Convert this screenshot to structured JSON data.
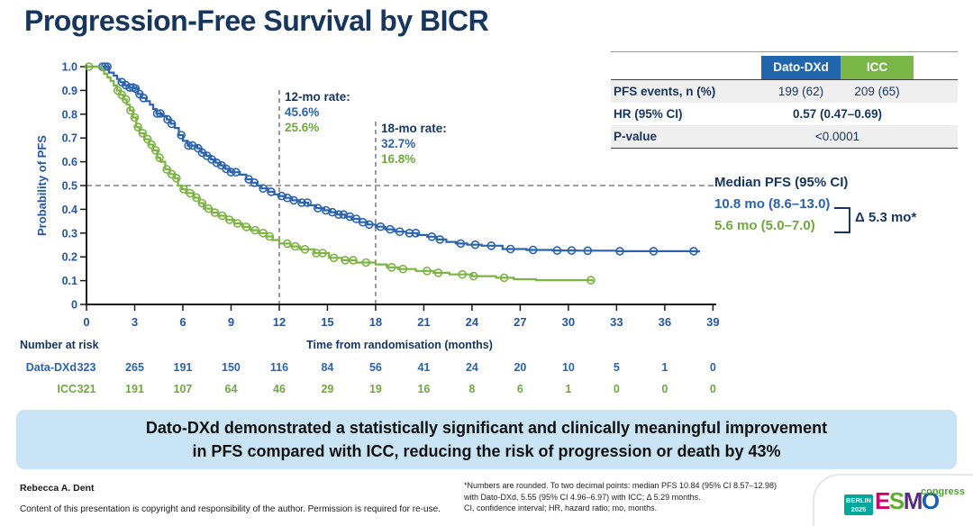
{
  "title": "Progression-Free Survival by BICR",
  "colors": {
    "navy": "#16365D",
    "blue": "#2A63AE",
    "green": "#7CB342",
    "green_text": "#6FA83C",
    "tick_blue": "#2456A3",
    "blue_hdr": "#2166AC",
    "green_hdr": "#7AB648",
    "banner_bg": "#C9E4F5",
    "teal": "#00A79B",
    "congress_green": "#4CA32F",
    "esmo_e": "#D5006D",
    "esmo_s": "#5FAF2D",
    "esmo_m": "#582C83",
    "esmo_o": "#1B5FAF"
  },
  "stats_table": {
    "header_dato": "Dato-DXd",
    "header_icc": "ICC",
    "row1_label": "PFS events, n (%)",
    "row1_dato": "199 (62)",
    "row1_icc": "209 (65)",
    "row2_label": "HR (95% CI)",
    "row2_value": "0.57 (0.47–0.69)",
    "row3_label": "P-value",
    "row3_value": "<0.0001"
  },
  "annotations": {
    "rate12_title": "12-mo rate:",
    "rate12_dato": "45.6%",
    "rate12_icc": "25.6%",
    "rate18_title": "18-mo rate:",
    "rate18_dato": "32.7%",
    "rate18_icc": "16.8%",
    "median_title": "Median PFS (95% CI)",
    "median_dato": "10.8 mo (8.6–13.0)",
    "median_icc": "5.6 mo (5.0–7.0)",
    "median_delta": "Δ 5.3 mo*"
  },
  "chart_data": {
    "type": "line",
    "subtype": "kaplan-meier-step",
    "title": "Progression-Free Survival by BICR",
    "xlabel": "Time from randomisation (months)",
    "ylabel": "Probability of PFS",
    "xlim": [
      0,
      39
    ],
    "ylim": [
      0,
      1.0
    ],
    "x_ticks": [
      0,
      3,
      6,
      9,
      12,
      15,
      18,
      21,
      24,
      27,
      30,
      33,
      36,
      39
    ],
    "y_tick_labels": [
      "1.0",
      "0.9",
      "0.8",
      "0.7",
      "0.6",
      "0.5",
      "0.4",
      "0.3",
      "0.2",
      "0.1",
      "0"
    ],
    "y_tick_values": [
      1.0,
      0.9,
      0.8,
      0.7,
      0.6,
      0.5,
      0.4,
      0.3,
      0.2,
      0.1,
      0
    ],
    "grid": false,
    "reference_lines": {
      "horizontal_p": 0.5,
      "vertical_months": [
        12,
        18
      ]
    },
    "series": [
      {
        "name": "Dato-DXd",
        "color": "#2A63AE",
        "end_month": 38.2,
        "steps": [
          [
            0,
            1.0
          ],
          [
            1.25,
            1.0
          ],
          [
            1.4,
            0.975
          ],
          [
            1.7,
            0.962
          ],
          [
            1.9,
            0.948
          ],
          [
            2.1,
            0.935
          ],
          [
            2.35,
            0.922
          ],
          [
            2.6,
            0.912
          ],
          [
            3.0,
            0.908
          ],
          [
            3.2,
            0.885
          ],
          [
            3.45,
            0.868
          ],
          [
            3.7,
            0.855
          ],
          [
            3.95,
            0.84
          ],
          [
            4.15,
            0.822
          ],
          [
            4.35,
            0.803
          ],
          [
            4.7,
            0.792
          ],
          [
            5.0,
            0.778
          ],
          [
            5.25,
            0.76
          ],
          [
            5.5,
            0.742
          ],
          [
            5.75,
            0.712
          ],
          [
            6.0,
            0.688
          ],
          [
            6.3,
            0.668
          ],
          [
            6.9,
            0.657
          ],
          [
            7.15,
            0.638
          ],
          [
            7.45,
            0.625
          ],
          [
            7.75,
            0.61
          ],
          [
            8.05,
            0.596
          ],
          [
            8.35,
            0.585
          ],
          [
            8.65,
            0.57
          ],
          [
            8.95,
            0.556
          ],
          [
            9.55,
            0.546
          ],
          [
            9.95,
            0.526
          ],
          [
            10.3,
            0.512
          ],
          [
            10.6,
            0.5
          ],
          [
            10.9,
            0.488
          ],
          [
            11.3,
            0.474
          ],
          [
            11.7,
            0.463
          ],
          [
            12.0,
            0.456
          ],
          [
            12.4,
            0.448
          ],
          [
            12.8,
            0.438
          ],
          [
            13.3,
            0.428
          ],
          [
            13.8,
            0.417
          ],
          [
            14.3,
            0.405
          ],
          [
            14.8,
            0.396
          ],
          [
            15.2,
            0.388
          ],
          [
            15.6,
            0.378
          ],
          [
            16.1,
            0.369
          ],
          [
            16.5,
            0.36
          ],
          [
            17.0,
            0.346
          ],
          [
            17.5,
            0.336
          ],
          [
            18.0,
            0.327
          ],
          [
            18.6,
            0.316
          ],
          [
            19.2,
            0.306
          ],
          [
            19.9,
            0.3
          ],
          [
            20.6,
            0.292
          ],
          [
            21.2,
            0.285
          ],
          [
            21.8,
            0.273
          ],
          [
            22.4,
            0.263
          ],
          [
            23.0,
            0.256
          ],
          [
            23.7,
            0.251
          ],
          [
            24.6,
            0.247
          ],
          [
            25.9,
            0.233
          ],
          [
            27.4,
            0.229
          ],
          [
            29.0,
            0.227
          ],
          [
            30.6,
            0.226
          ],
          [
            33.0,
            0.224
          ],
          [
            38.0,
            0.223
          ]
        ],
        "censor_months": [
          1.0,
          1.15,
          1.3,
          2.2,
          2.45,
          2.7,
          2.9,
          3.05,
          3.3,
          3.55,
          4.4,
          4.6,
          5.05,
          5.3,
          5.9,
          6.35,
          6.6,
          6.95,
          7.2,
          7.5,
          7.8,
          8.1,
          8.4,
          8.7,
          9.0,
          9.3,
          10.1,
          10.45,
          11.0,
          11.5,
          12.15,
          12.5,
          12.9,
          13.4,
          13.75,
          14.4,
          14.9,
          15.3,
          15.7,
          16.0,
          16.4,
          16.8,
          17.2,
          17.6,
          18.3,
          18.9,
          19.5,
          20.1,
          20.5,
          21.5,
          22.0,
          23.3,
          24.2,
          25.2,
          26.4,
          27.8,
          29.3,
          30.2,
          31.2,
          33.2,
          35.3,
          37.8
        ],
        "rate_12mo": 0.456,
        "rate_18mo": 0.327,
        "median_months": 10.8
      },
      {
        "name": "ICC",
        "color": "#7CB342",
        "end_month": 31.55,
        "steps": [
          [
            0,
            1.0
          ],
          [
            0.8,
            1.0
          ],
          [
            0.95,
            0.985
          ],
          [
            1.1,
            0.97
          ],
          [
            1.3,
            0.955
          ],
          [
            1.5,
            0.94
          ],
          [
            1.7,
            0.921
          ],
          [
            1.9,
            0.9
          ],
          [
            2.1,
            0.881
          ],
          [
            2.3,
            0.862
          ],
          [
            2.5,
            0.84
          ],
          [
            2.7,
            0.816
          ],
          [
            2.9,
            0.786
          ],
          [
            3.1,
            0.746
          ],
          [
            3.3,
            0.72
          ],
          [
            3.6,
            0.695
          ],
          [
            3.9,
            0.672
          ],
          [
            4.15,
            0.648
          ],
          [
            4.4,
            0.617
          ],
          [
            4.6,
            0.6
          ],
          [
            4.9,
            0.568
          ],
          [
            5.2,
            0.548
          ],
          [
            5.5,
            0.531
          ],
          [
            5.7,
            0.5
          ],
          [
            5.95,
            0.485
          ],
          [
            6.2,
            0.468
          ],
          [
            6.7,
            0.449
          ],
          [
            7.0,
            0.426
          ],
          [
            7.3,
            0.403
          ],
          [
            7.8,
            0.386
          ],
          [
            8.2,
            0.373
          ],
          [
            8.7,
            0.356
          ],
          [
            9.2,
            0.341
          ],
          [
            9.7,
            0.326
          ],
          [
            10.2,
            0.312
          ],
          [
            10.7,
            0.3
          ],
          [
            11.2,
            0.286
          ],
          [
            11.6,
            0.271
          ],
          [
            12.0,
            0.256
          ],
          [
            12.7,
            0.244
          ],
          [
            13.3,
            0.232
          ],
          [
            14.2,
            0.216
          ],
          [
            15.1,
            0.196
          ],
          [
            15.9,
            0.186
          ],
          [
            16.8,
            0.176
          ],
          [
            18.0,
            0.168
          ],
          [
            18.7,
            0.156
          ],
          [
            19.4,
            0.149
          ],
          [
            20.5,
            0.141
          ],
          [
            21.6,
            0.133
          ],
          [
            22.6,
            0.126
          ],
          [
            24.0,
            0.119
          ],
          [
            25.5,
            0.112
          ],
          [
            26.6,
            0.106
          ],
          [
            28.0,
            0.102
          ],
          [
            31.5,
            0.1
          ]
        ],
        "censor_months": [
          0.15,
          1.95,
          2.2,
          2.45,
          2.75,
          3.0,
          3.2,
          3.5,
          3.8,
          4.05,
          4.3,
          4.55,
          5.0,
          5.3,
          5.6,
          6.05,
          6.45,
          6.85,
          7.2,
          7.6,
          8.0,
          8.45,
          8.9,
          9.4,
          9.95,
          10.5,
          11.0,
          11.4,
          12.5,
          13.0,
          13.6,
          14.3,
          14.7,
          15.4,
          16.1,
          16.6,
          17.4,
          19.0,
          19.7,
          21.2,
          21.9,
          23.4,
          24.1,
          26.0,
          31.4
        ],
        "rate_12mo": 0.256,
        "rate_18mo": 0.168,
        "median_months": 5.6
      }
    ],
    "number_at_risk": {
      "caption": "Number at risk",
      "rows": [
        {
          "label": "Data-DXd",
          "color": "#2A63AE",
          "values": [
            323,
            265,
            191,
            150,
            116,
            84,
            56,
            41,
            24,
            20,
            10,
            5,
            1,
            0
          ]
        },
        {
          "label": "ICC",
          "color": "#6FA83C",
          "values": [
            321,
            191,
            107,
            64,
            46,
            29,
            19,
            16,
            8,
            6,
            1,
            0,
            0,
            0
          ]
        }
      ]
    }
  },
  "banner": {
    "line1": "Dato-DXd demonstrated a statistically significant and clinically meaningful improvement",
    "line2": "in PFS compared with ICC, reducing the risk of progression or death by 43%"
  },
  "footer": {
    "author": "Rebecca A. Dent",
    "copyright": "Content of this presentation is copyright and responsibility of the author. Permission is required for re-use.",
    "footnote_lines": [
      "*Numbers are rounded. To two decimal points: median PFS 10.84 (95% CI 8.57–12.98)",
      "with Dato-DXd, 5.55 (95% CI 4.96–6.97) with ICC; Δ 5.29 months.",
      "CI, confidence interval; HR, hazard ratio; mo, months."
    ],
    "logo": {
      "berlin_line1": "BERLIN",
      "berlin_line2": "2025",
      "esmo_letters": [
        "E",
        "S",
        "M",
        "O"
      ],
      "congress": "congress"
    }
  }
}
